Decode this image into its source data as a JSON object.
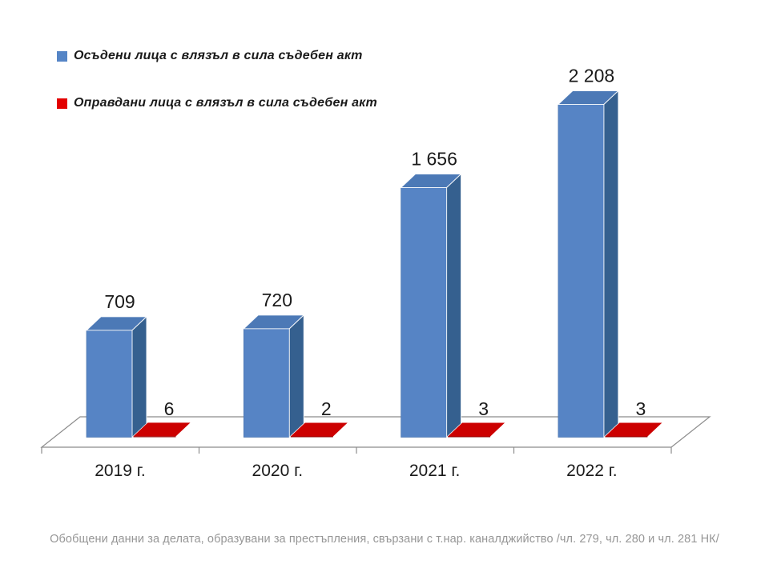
{
  "legend": {
    "items": [
      {
        "id": "convicted",
        "label": "Осъдени лица с влязъл в сила съдебен акт",
        "color": "#5585C6"
      },
      {
        "id": "acquitted",
        "label": "Оправдани лица с влязъл в сила съдебен акт",
        "color": "#E30000"
      }
    ]
  },
  "caption": "Обобщени данни за делата, образувани за престъпления, свързани с т.нар. каналджийство /чл. 279, чл. 280 и чл. 281 НК/",
  "chart_data": {
    "type": "bar",
    "style": "3d-clustered-column",
    "title": "",
    "categories": [
      "2019 г.",
      "2020 г.",
      "2021 г.",
      "2022 г."
    ],
    "series": [
      {
        "name": "Осъдени лица с влязъл в сила съдебен акт",
        "values": [
          709,
          720,
          1656,
          2208
        ],
        "data_labels": [
          "709",
          "720",
          "1 656",
          "2 208"
        ],
        "color_front": "#5684C5",
        "color_top": "#4C79B6",
        "color_side": "#35608F"
      },
      {
        "name": "Оправдани лица с влязъл в сила съдебен акт",
        "values": [
          6,
          2,
          3,
          3
        ],
        "data_labels": [
          "6",
          "2",
          "3",
          "3"
        ],
        "color_front": "#8F0000",
        "color_top": "#CC0000",
        "color_side": "#8F0000"
      }
    ],
    "value_axis_visible": false,
    "gridlines": false,
    "legend_position": "top-left",
    "floor_line_color": "#8C8C8C",
    "label_color": "#1a1a1a"
  }
}
